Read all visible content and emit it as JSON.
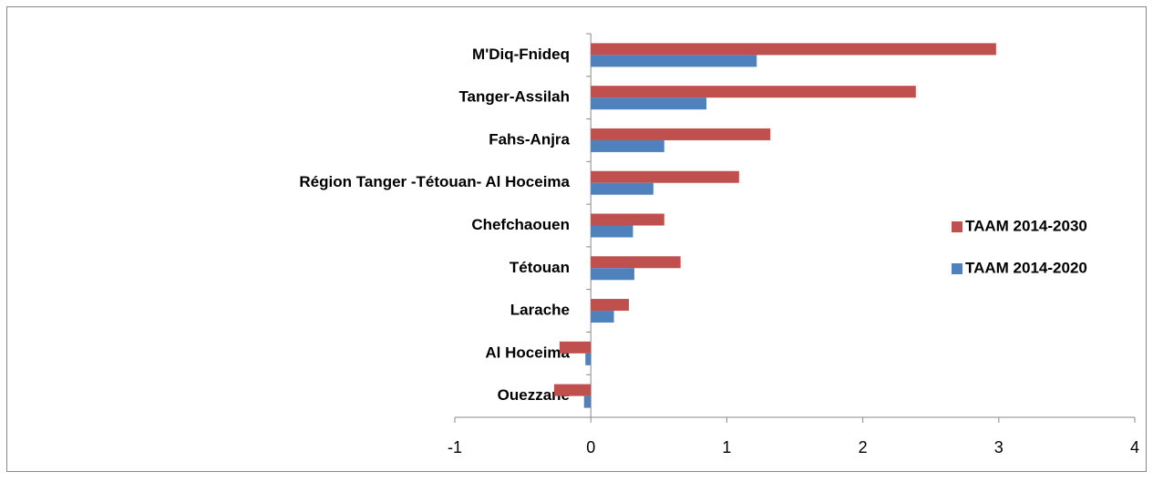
{
  "chart_data": {
    "type": "hbar",
    "categories": [
      "M'Diq-Fnideq",
      "Tanger-Assilah",
      "Fahs-Anjra",
      "Région Tanger -Tétouan- Al Hoceima",
      "Chefchaouen",
      "Tétouan",
      "Larache",
      "Al Hoceima",
      "Ouezzane"
    ],
    "series": [
      {
        "name": "TAAM 2014-2030",
        "color": "#c0504d",
        "values": [
          2.98,
          2.39,
          1.32,
          1.09,
          0.54,
          0.66,
          0.28,
          -0.23,
          -0.27
        ]
      },
      {
        "name": "TAAM 2014-2020",
        "color": "#4f81bd",
        "values": [
          1.22,
          0.85,
          0.54,
          0.46,
          0.31,
          0.32,
          0.17,
          -0.04,
          -0.05
        ]
      }
    ],
    "xlim": [
      -1,
      4
    ],
    "xticks": [
      -1,
      0,
      1,
      2,
      3,
      4
    ],
    "grid": false,
    "legend": "right"
  }
}
